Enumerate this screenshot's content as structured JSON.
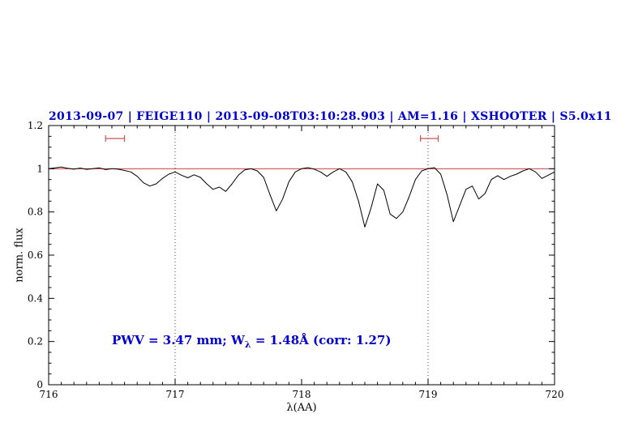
{
  "title": "2013-09-07 | FEIGE110 | 2013-09-08T03:10:28.903 | AM=1.16 | XSHOOTER | S5.0x11",
  "annotation": {
    "prefix": "PWV = 3.47 mm; W",
    "sub": "λ",
    "suffix": " = 1.48Å (corr: 1.27)"
  },
  "colors": {
    "title": "#0000cc",
    "annotation": "#0000cc",
    "spectrum": "#000000",
    "continuum": "#cc2222",
    "markers": "#cc5555",
    "dotted_line": "#444444"
  },
  "chart_data": {
    "type": "line",
    "title": "2013-09-07 | FEIGE110 | 2013-09-08T03:10:28.903 | AM=1.16 | XSHOOTER | S5.0x11",
    "xlabel": "λ(AA)",
    "ylabel": "norm. flux",
    "xlim": [
      716,
      720
    ],
    "ylim": [
      0,
      1.2
    ],
    "xticks": [
      716,
      717,
      718,
      719,
      720
    ],
    "xtick_labels": [
      "716",
      "717",
      "718",
      "719",
      "720"
    ],
    "yticks": [
      0,
      0.2,
      0.4,
      0.6,
      0.8,
      1,
      1.2
    ],
    "ytick_labels": [
      "0",
      "0.2",
      "0.4",
      "0.6",
      "0.8",
      "1",
      "1.2"
    ],
    "minor_x_step": 0.1,
    "minor_y_step": 0.05,
    "grid": false,
    "legend": "none",
    "dotted_vlines": [
      717,
      719
    ],
    "continuum_y": 1.0,
    "markers": [
      {
        "x1": 716.45,
        "x2": 716.6,
        "y": 1.14
      },
      {
        "x1": 718.94,
        "x2": 719.08,
        "y": 1.14
      }
    ],
    "series": [
      {
        "name": "spectrum",
        "points": [
          [
            716.0,
            1.0
          ],
          [
            716.05,
            1.004
          ],
          [
            716.1,
            1.008
          ],
          [
            716.15,
            1.002
          ],
          [
            716.2,
            0.998
          ],
          [
            716.25,
            1.003
          ],
          [
            716.3,
            0.997
          ],
          [
            716.35,
            1.0
          ],
          [
            716.4,
            1.004
          ],
          [
            716.45,
            0.996
          ],
          [
            716.5,
            1.0
          ],
          [
            716.55,
            0.998
          ],
          [
            716.6,
            0.992
          ],
          [
            716.65,
            0.985
          ],
          [
            716.7,
            0.965
          ],
          [
            716.75,
            0.935
          ],
          [
            716.8,
            0.92
          ],
          [
            716.85,
            0.93
          ],
          [
            716.9,
            0.955
          ],
          [
            716.95,
            0.975
          ],
          [
            717.0,
            0.985
          ],
          [
            717.05,
            0.97
          ],
          [
            717.1,
            0.958
          ],
          [
            717.15,
            0.972
          ],
          [
            717.2,
            0.96
          ],
          [
            717.25,
            0.93
          ],
          [
            717.3,
            0.905
          ],
          [
            717.35,
            0.915
          ],
          [
            717.4,
            0.895
          ],
          [
            717.45,
            0.93
          ],
          [
            717.5,
            0.97
          ],
          [
            717.55,
            0.995
          ],
          [
            717.6,
            1.0
          ],
          [
            717.65,
            0.99
          ],
          [
            717.7,
            0.96
          ],
          [
            717.75,
            0.88
          ],
          [
            717.8,
            0.805
          ],
          [
            717.85,
            0.86
          ],
          [
            717.9,
            0.94
          ],
          [
            717.95,
            0.985
          ],
          [
            718.0,
            1.0
          ],
          [
            718.05,
            1.005
          ],
          [
            718.1,
            0.998
          ],
          [
            718.15,
            0.985
          ],
          [
            718.2,
            0.965
          ],
          [
            718.25,
            0.985
          ],
          [
            718.3,
            1.0
          ],
          [
            718.35,
            0.985
          ],
          [
            718.4,
            0.94
          ],
          [
            718.45,
            0.85
          ],
          [
            718.5,
            0.73
          ],
          [
            718.55,
            0.82
          ],
          [
            718.6,
            0.93
          ],
          [
            718.65,
            0.9
          ],
          [
            718.7,
            0.79
          ],
          [
            718.75,
            0.77
          ],
          [
            718.8,
            0.8
          ],
          [
            718.85,
            0.87
          ],
          [
            718.9,
            0.95
          ],
          [
            718.95,
            0.99
          ],
          [
            719.0,
            1.0
          ],
          [
            719.05,
            1.005
          ],
          [
            719.1,
            0.975
          ],
          [
            719.15,
            0.88
          ],
          [
            719.2,
            0.755
          ],
          [
            719.25,
            0.83
          ],
          [
            719.3,
            0.905
          ],
          [
            719.35,
            0.92
          ],
          [
            719.4,
            0.86
          ],
          [
            719.45,
            0.885
          ],
          [
            719.5,
            0.95
          ],
          [
            719.55,
            0.968
          ],
          [
            719.6,
            0.95
          ],
          [
            719.65,
            0.965
          ],
          [
            719.7,
            0.975
          ],
          [
            719.75,
            0.99
          ],
          [
            719.8,
            1.0
          ],
          [
            719.85,
            0.985
          ],
          [
            719.9,
            0.955
          ],
          [
            719.95,
            0.97
          ],
          [
            720.0,
            0.985
          ]
        ]
      }
    ]
  }
}
